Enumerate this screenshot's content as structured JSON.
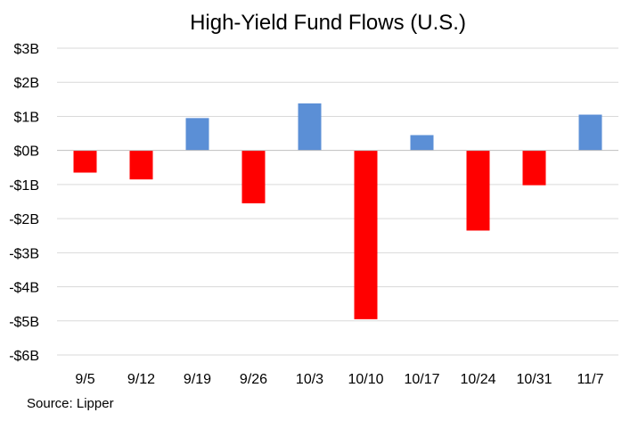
{
  "chart_data": {
    "type": "bar",
    "title": "High-Yield Fund Flows (U.S.)",
    "xlabel": "",
    "ylabel": "",
    "categories": [
      "9/5",
      "9/12",
      "9/19",
      "9/26",
      "10/3",
      "10/10",
      "10/17",
      "10/24",
      "10/31",
      "11/7"
    ],
    "values": [
      -0.65,
      -0.85,
      0.95,
      -1.55,
      1.38,
      -4.95,
      0.45,
      -2.35,
      -1.02,
      1.05
    ],
    "ylim": [
      -6,
      3
    ],
    "y_ticks": [
      3,
      2,
      1,
      0,
      -1,
      -2,
      -3,
      -4,
      -5,
      -6
    ],
    "y_tick_labels": [
      "$3B",
      "$2B",
      "$1B",
      "$0B",
      "-$1B",
      "-$2B",
      "-$3B",
      "-$4B",
      "-$5B",
      "-$6B"
    ],
    "grid": true,
    "legend": "none",
    "colors": {
      "positive": "#5B8FD6",
      "negative": "#FF0000",
      "gridline": "#D9D9D9"
    }
  },
  "source": "Source: Lipper"
}
